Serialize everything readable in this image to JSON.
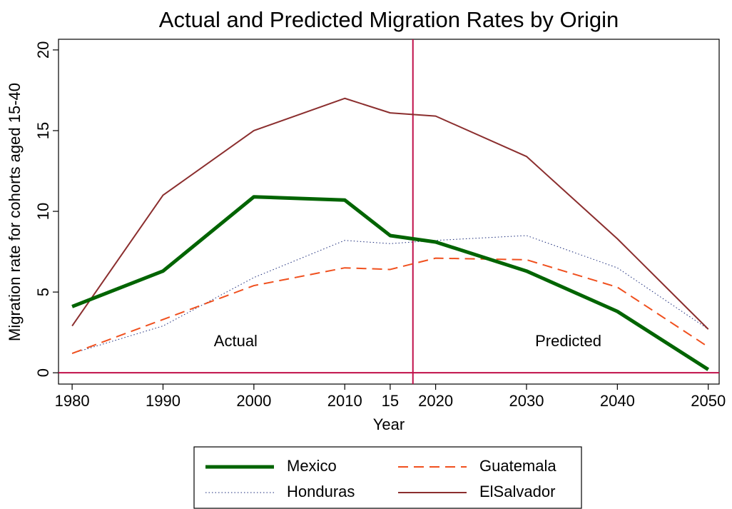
{
  "chart_data": {
    "type": "line",
    "title": "Actual and Predicted Migration Rates by Origin",
    "x_label": "Year",
    "y_label": "Migration rate for cohorts aged 15-40",
    "x": [
      1980,
      1990,
      2000,
      2010,
      2015,
      2020,
      2030,
      2040,
      2050
    ],
    "series": [
      {
        "name": "Mexico",
        "color": "#006400",
        "width": 5,
        "dash": "solid",
        "values": [
          4.1,
          6.3,
          10.9,
          10.7,
          8.5,
          8.1,
          6.3,
          3.8,
          0.2
        ]
      },
      {
        "name": "Guatemala",
        "color": "#f0501e",
        "width": 2,
        "dash": "dash",
        "values": [
          1.2,
          3.3,
          5.4,
          6.5,
          6.4,
          7.1,
          7.0,
          5.3,
          1.6
        ]
      },
      {
        "name": "Honduras",
        "color": "#1a2a7a",
        "width": 1,
        "dash": "dot",
        "values": [
          1.2,
          2.9,
          5.9,
          8.2,
          8.0,
          8.2,
          8.5,
          6.5,
          2.7
        ]
      },
      {
        "name": "ElSalvador",
        "color": "#8b2e2e",
        "width": 2,
        "dash": "solid",
        "values": [
          2.9,
          11.0,
          15.0,
          17.0,
          16.1,
          15.9,
          13.4,
          8.3,
          2.7
        ]
      }
    ],
    "xlim": [
      1978.5,
      2051.2
    ],
    "ylim": [
      -0.7,
      20.66
    ],
    "xticks": [
      1980,
      1990,
      2000,
      2010,
      {
        "value": 2015,
        "label": "15"
      },
      2020,
      2030,
      2040,
      2050
    ],
    "yticks": [
      0,
      5,
      10,
      15,
      20
    ],
    "reference_lines": {
      "x": 2017.5,
      "y": 0,
      "color": "#c0104a"
    },
    "annotations": [
      {
        "text": "Actual",
        "x": 1998,
        "y": 1.9
      },
      {
        "text": "Predicted",
        "x": 2034.6,
        "y": 1.9
      }
    ],
    "legend": "bottom",
    "grid": false
  }
}
